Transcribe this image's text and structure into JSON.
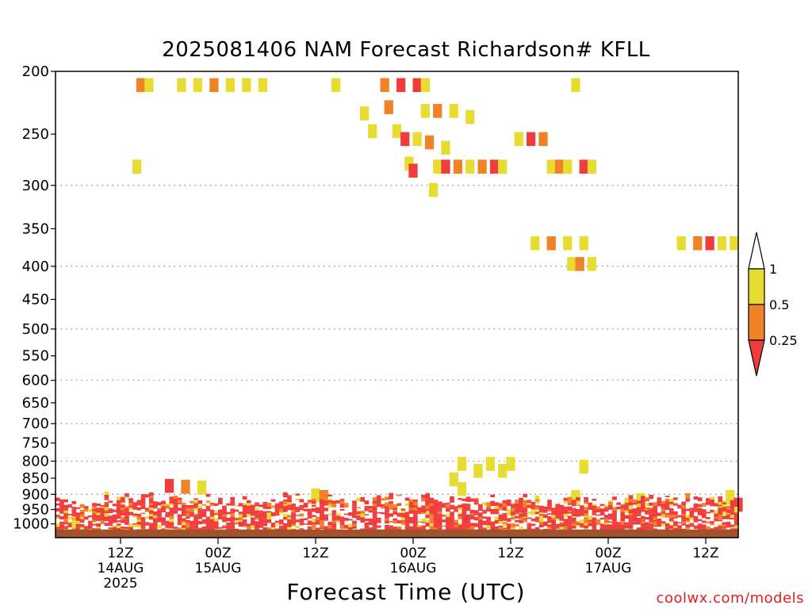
{
  "chart_data": {
    "type": "heatmap",
    "title": "2025081406 NAM Forecast Richardson# KFLL",
    "xlabel": "Forecast Time (UTC)",
    "ylabel": "",
    "y_scale": "log-pressure (reversed)",
    "ylim_hPa": [
      1050,
      200
    ],
    "xlim_hours": [
      -2,
      82
    ],
    "x_ticks": [
      {
        "hour": 6,
        "lines": [
          "12Z",
          "14AUG",
          "2025"
        ]
      },
      {
        "hour": 18,
        "lines": [
          "00Z",
          "15AUG"
        ]
      },
      {
        "hour": 30,
        "lines": [
          "12Z"
        ]
      },
      {
        "hour": 42,
        "lines": [
          "00Z",
          "16AUG"
        ]
      },
      {
        "hour": 54,
        "lines": [
          "12Z"
        ]
      },
      {
        "hour": 66,
        "lines": [
          "00Z",
          "17AUG"
        ]
      },
      {
        "hour": 78,
        "lines": [
          "12Z"
        ]
      }
    ],
    "y_ticks": [
      200,
      250,
      300,
      350,
      400,
      450,
      500,
      550,
      600,
      650,
      700,
      750,
      800,
      850,
      900,
      950,
      1000
    ],
    "grid_levels": [
      300,
      400,
      500,
      600,
      700,
      800,
      900
    ],
    "grid": true,
    "legend": {
      "placement": "right",
      "bins": [
        {
          "label": "<0.25",
          "color": "#f03c3c"
        },
        {
          "label": "0.25-0.5",
          "color": "#f08228"
        },
        {
          "label": "0.5-1",
          "color": "#e6dc32"
        }
      ],
      "tick_labels": [
        "1",
        "0.5",
        "0.25"
      ]
    },
    "color_legend": {
      "red": "#f03c3c",
      "orange": "#f08228",
      "yellow": "#e6dc32",
      "ground": "#a0522d"
    },
    "upper_cells": [
      {
        "hour": 8,
        "p": 278,
        "c": "y"
      },
      {
        "hour": 8.5,
        "p": 208,
        "c": "o"
      },
      {
        "hour": 9.5,
        "p": 208,
        "c": "y"
      },
      {
        "hour": 13.5,
        "p": 208,
        "c": "y"
      },
      {
        "hour": 15.5,
        "p": 208,
        "c": "y"
      },
      {
        "hour": 17.5,
        "p": 208,
        "c": "o"
      },
      {
        "hour": 19.5,
        "p": 208,
        "c": "y"
      },
      {
        "hour": 21.5,
        "p": 208,
        "c": "y"
      },
      {
        "hour": 23.5,
        "p": 208,
        "c": "y"
      },
      {
        "hour": 32.5,
        "p": 208,
        "c": "y"
      },
      {
        "hour": 38.5,
        "p": 208,
        "c": "o"
      },
      {
        "hour": 40.5,
        "p": 208,
        "c": "r"
      },
      {
        "hour": 42.5,
        "p": 208,
        "c": "r"
      },
      {
        "hour": 43.5,
        "p": 208,
        "c": "y"
      },
      {
        "hour": 62,
        "p": 208,
        "c": "y"
      },
      {
        "hour": 36,
        "p": 230,
        "c": "y"
      },
      {
        "hour": 37,
        "p": 245,
        "c": "y"
      },
      {
        "hour": 39,
        "p": 225,
        "c": "o"
      },
      {
        "hour": 40,
        "p": 245,
        "c": "y"
      },
      {
        "hour": 43.5,
        "p": 228,
        "c": "y"
      },
      {
        "hour": 45,
        "p": 228,
        "c": "o"
      },
      {
        "hour": 47,
        "p": 228,
        "c": "y"
      },
      {
        "hour": 49,
        "p": 233,
        "c": "y"
      },
      {
        "hour": 41,
        "p": 252,
        "c": "r"
      },
      {
        "hour": 42.5,
        "p": 252,
        "c": "y"
      },
      {
        "hour": 44,
        "p": 255,
        "c": "o"
      },
      {
        "hour": 46,
        "p": 260,
        "c": "y"
      },
      {
        "hour": 55,
        "p": 252,
        "c": "y"
      },
      {
        "hour": 56.5,
        "p": 252,
        "c": "r"
      },
      {
        "hour": 58,
        "p": 252,
        "c": "o"
      },
      {
        "hour": 41.5,
        "p": 275,
        "c": "y"
      },
      {
        "hour": 42,
        "p": 282,
        "c": "r"
      },
      {
        "hour": 45,
        "p": 278,
        "c": "y"
      },
      {
        "hour": 46,
        "p": 278,
        "c": "r"
      },
      {
        "hour": 47.5,
        "p": 278,
        "c": "o"
      },
      {
        "hour": 49,
        "p": 278,
        "c": "y"
      },
      {
        "hour": 50.5,
        "p": 278,
        "c": "o"
      },
      {
        "hour": 52,
        "p": 278,
        "c": "r"
      },
      {
        "hour": 53,
        "p": 278,
        "c": "y"
      },
      {
        "hour": 59,
        "p": 278,
        "c": "y"
      },
      {
        "hour": 60,
        "p": 278,
        "c": "o"
      },
      {
        "hour": 61,
        "p": 278,
        "c": "y"
      },
      {
        "hour": 63,
        "p": 278,
        "c": "r"
      },
      {
        "hour": 64,
        "p": 278,
        "c": "y"
      },
      {
        "hour": 44.5,
        "p": 302,
        "c": "y"
      },
      {
        "hour": 57,
        "p": 365,
        "c": "y"
      },
      {
        "hour": 59,
        "p": 365,
        "c": "o"
      },
      {
        "hour": 61,
        "p": 365,
        "c": "y"
      },
      {
        "hour": 63,
        "p": 365,
        "c": "y"
      },
      {
        "hour": 75,
        "p": 365,
        "c": "y"
      },
      {
        "hour": 77,
        "p": 365,
        "c": "o"
      },
      {
        "hour": 78.5,
        "p": 365,
        "c": "r"
      },
      {
        "hour": 80,
        "p": 365,
        "c": "y"
      },
      {
        "hour": 81.5,
        "p": 365,
        "c": "y"
      },
      {
        "hour": 61.5,
        "p": 393,
        "c": "y"
      },
      {
        "hour": 62.5,
        "p": 393,
        "c": "o"
      },
      {
        "hour": 64,
        "p": 393,
        "c": "y"
      },
      {
        "hour": 63,
        "p": 808,
        "c": "y"
      },
      {
        "hour": 48,
        "p": 800,
        "c": "y"
      },
      {
        "hour": 51.5,
        "p": 800,
        "c": "y"
      },
      {
        "hour": 54,
        "p": 800,
        "c": "y"
      },
      {
        "hour": 50,
        "p": 820,
        "c": "y"
      },
      {
        "hour": 53,
        "p": 820,
        "c": "y"
      },
      {
        "hour": 47,
        "p": 845,
        "c": "y"
      },
      {
        "hour": 48,
        "p": 875,
        "c": "y"
      },
      {
        "hour": 12,
        "p": 865,
        "c": "r"
      },
      {
        "hour": 14,
        "p": 868,
        "c": "o"
      },
      {
        "hour": 16,
        "p": 870,
        "c": "y"
      },
      {
        "hour": 30,
        "p": 895,
        "c": "y"
      },
      {
        "hour": 31,
        "p": 900,
        "c": "o"
      },
      {
        "hour": 42,
        "p": 930,
        "c": "o"
      },
      {
        "hour": 44,
        "p": 932,
        "c": "y"
      },
      {
        "hour": 62,
        "p": 900,
        "c": "y"
      },
      {
        "hour": 70,
        "p": 910,
        "c": "y"
      },
      {
        "hour": 81,
        "p": 900,
        "c": "y"
      },
      {
        "hour": 80,
        "p": 935,
        "c": "y"
      },
      {
        "hour": 82,
        "p": 925,
        "c": "r"
      }
    ]
  }
}
